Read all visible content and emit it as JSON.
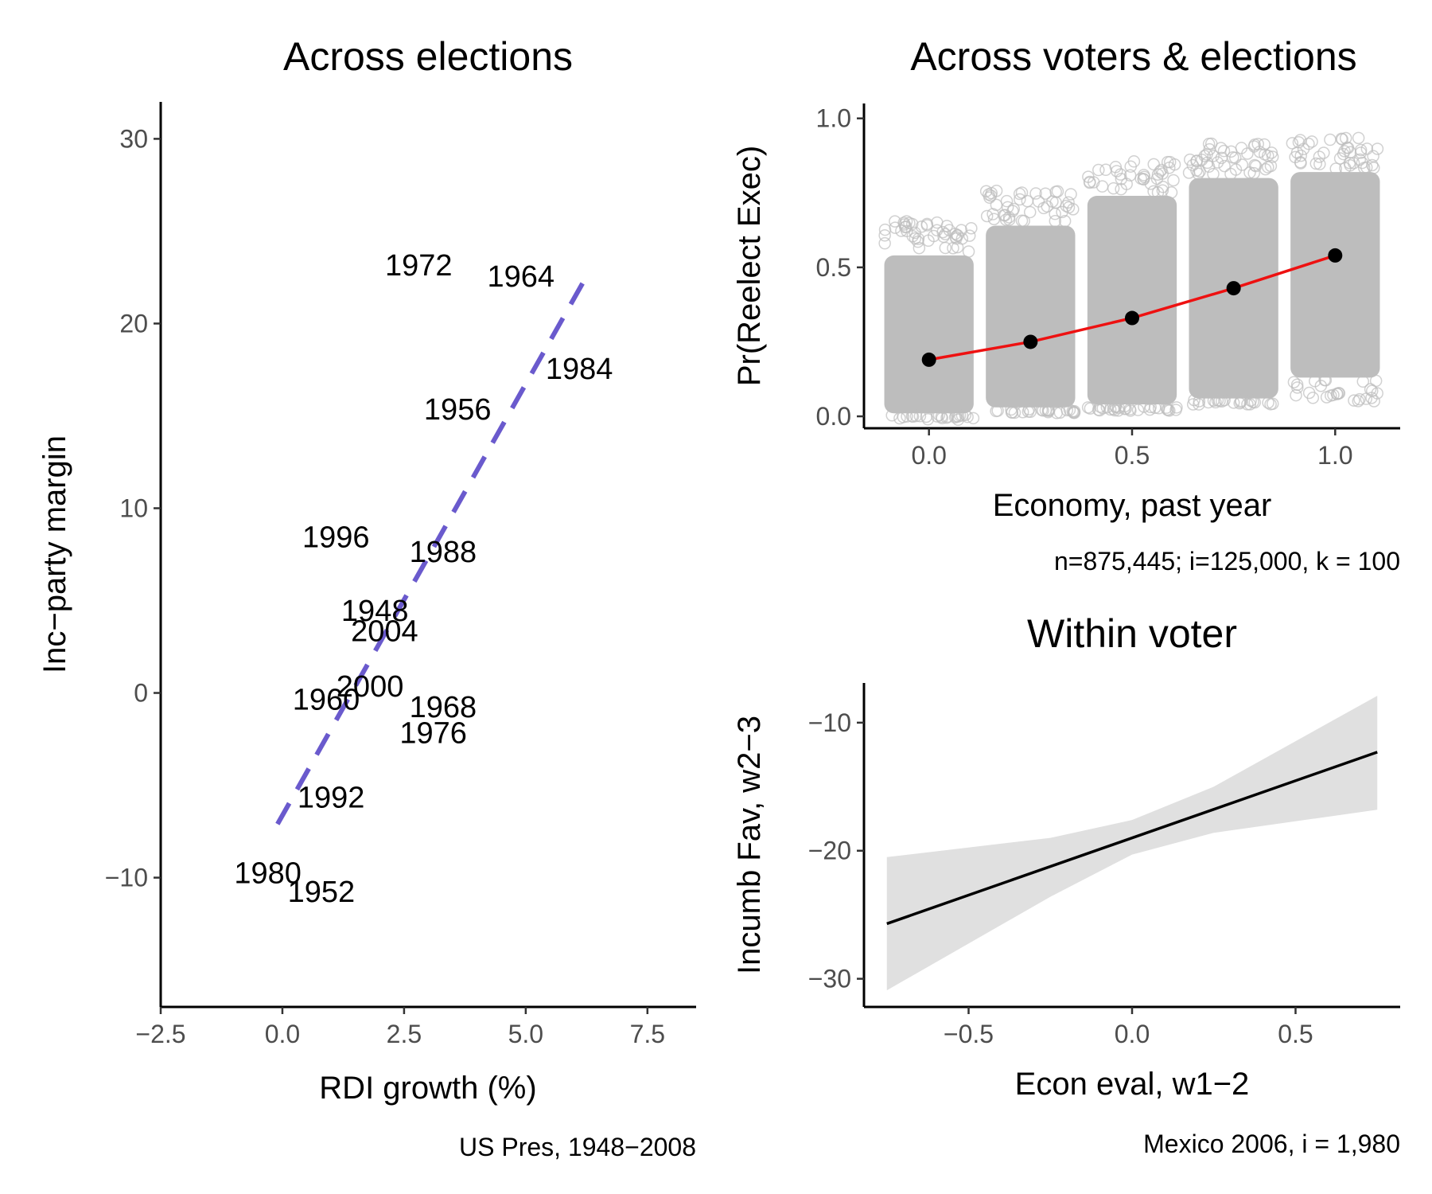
{
  "chart_data": [
    {
      "type": "scatter",
      "title": "Across elections",
      "xlabel": "RDI growth (%)",
      "ylabel": "Inc−party margin",
      "caption": "US Pres, 1948−2008",
      "xlim": [
        -2.5,
        8.5
      ],
      "ylim": [
        -17,
        32
      ],
      "xticks": [
        -2.5,
        0,
        2.5,
        5,
        7.5
      ],
      "xtick_labels": [
        "−2.5",
        "0.0",
        "2.5",
        "5.0",
        "7.5"
      ],
      "yticks": [
        -10,
        0,
        10,
        20,
        30
      ],
      "ytick_labels": [
        "−10",
        "0",
        "10",
        "20",
        "30"
      ],
      "points": [
        {
          "label": "1972",
          "x": 2.8,
          "y": 23.2
        },
        {
          "label": "1964",
          "x": 4.9,
          "y": 22.6
        },
        {
          "label": "1984",
          "x": 6.1,
          "y": 17.6
        },
        {
          "label": "1956",
          "x": 3.6,
          "y": 15.4
        },
        {
          "label": "1996",
          "x": 1.1,
          "y": 8.5
        },
        {
          "label": "1988",
          "x": 3.3,
          "y": 7.7
        },
        {
          "label": "1948",
          "x": 1.9,
          "y": 4.5
        },
        {
          "label": "2004",
          "x": 2.1,
          "y": 3.4
        },
        {
          "label": "2000",
          "x": 1.8,
          "y": 0.4
        },
        {
          "label": "1960",
          "x": 0.9,
          "y": -0.3
        },
        {
          "label": "1968",
          "x": 3.3,
          "y": -0.7
        },
        {
          "label": "1976",
          "x": 3.1,
          "y": -2.1
        },
        {
          "label": "1992",
          "x": 1.0,
          "y": -5.6
        },
        {
          "label": "1980",
          "x": -0.3,
          "y": -9.7
        },
        {
          "label": "1952",
          "x": 0.8,
          "y": -10.7
        }
      ],
      "fit_line": {
        "x": [
          -0.1,
          6.3
        ],
        "y": [
          -7.1,
          22.8
        ],
        "color": "#6a5acd",
        "style": "dashed"
      }
    },
    {
      "type": "scatter",
      "title": "Across voters & elections",
      "xlabel": "Economy, past year",
      "ylabel": "Pr(Reelect Exec)",
      "caption": "n=875,445; i=125,000, k = 100",
      "xlim": [
        -0.16,
        1.16
      ],
      "ylim": [
        -0.04,
        1.05
      ],
      "xticks": [
        0,
        0.5,
        1
      ],
      "xtick_labels": [
        "0.0",
        "0.5",
        "1.0"
      ],
      "yticks": [
        0,
        0.5,
        1
      ],
      "ytick_labels": [
        "0.0",
        "0.5",
        "1.0"
      ],
      "jitter_bands": [
        {
          "x": 0.0,
          "ymin": 0.0,
          "ymax": 0.6
        },
        {
          "x": 0.25,
          "ymin": 0.02,
          "ymax": 0.7
        },
        {
          "x": 0.5,
          "ymin": 0.03,
          "ymax": 0.8
        },
        {
          "x": 0.75,
          "ymin": 0.05,
          "ymax": 0.86
        },
        {
          "x": 1.0,
          "ymin": 0.12,
          "ymax": 0.88
        }
      ],
      "jitter_color": "#bdbdbd",
      "means": {
        "x": [
          0,
          0.25,
          0.5,
          0.75,
          1.0
        ],
        "y": [
          0.19,
          0.25,
          0.33,
          0.43,
          0.54
        ]
      },
      "mean_line_color": "#ee1111"
    },
    {
      "type": "line",
      "title": "Within voter",
      "xlabel": "Econ eval, w1−2",
      "ylabel": "Incumb Fav, w2−3",
      "caption": "Mexico 2006, i = 1,980",
      "xlim": [
        -0.82,
        0.82
      ],
      "ylim": [
        -32.2,
        -6.9
      ],
      "xticks": [
        -0.5,
        0,
        0.5
      ],
      "xtick_labels": [
        "−0.5",
        "0.0",
        "0.5"
      ],
      "yticks": [
        -30,
        -20,
        -10
      ],
      "ytick_labels": [
        "−30",
        "−20",
        "−10"
      ],
      "fit": {
        "x": [
          -0.75,
          0.75
        ],
        "y": [
          -25.7,
          -12.3
        ]
      },
      "ci_band": {
        "x": [
          -0.75,
          -0.25,
          0.0,
          0.25,
          0.75
        ],
        "lower": [
          -30.9,
          -23.6,
          -20.3,
          -18.6,
          -16.8
        ],
        "upper": [
          -20.5,
          -19.0,
          -17.6,
          -15.0,
          -7.9
        ]
      }
    }
  ]
}
